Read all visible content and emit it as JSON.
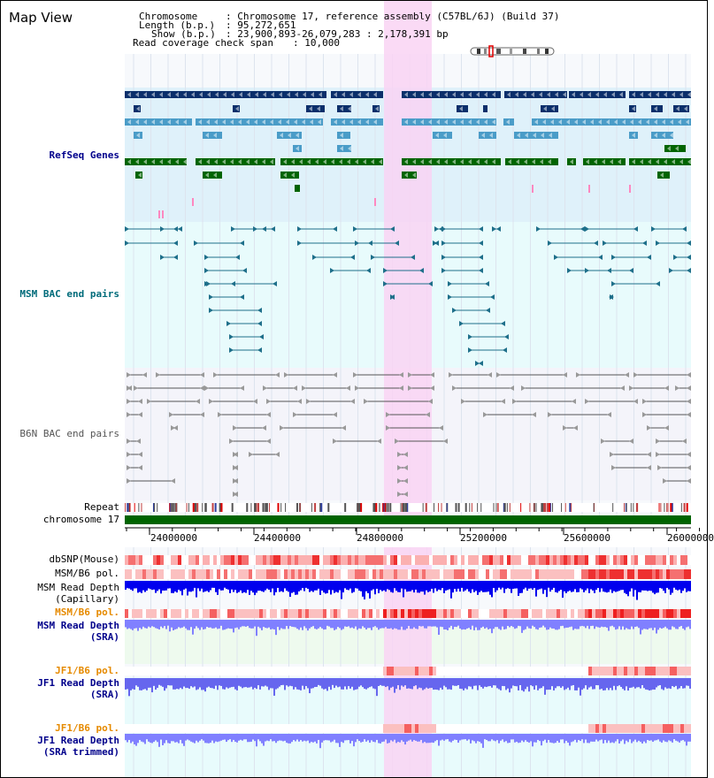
{
  "page": {
    "title": "Map View"
  },
  "info": {
    "chromosome_label": "Chromosome",
    "chromosome_value": ": Chromosome 17, reference assembly (C57BL/6J) (Build 37)",
    "length_label": "Length (b.p.)",
    "length_value": ": 95,272,651",
    "show_label": "Show (b.p.)",
    "show_value": ": 23,900,893-26,079,283 : 2,178,391 bp",
    "coverage_label": "Read coverage check span",
    "coverage_value": ": 10,000"
  },
  "tracks": {
    "refseq": "RefSeq Genes",
    "msm_bac": "MSM BAC end pairs",
    "b6n_bac": "B6N BAC end pairs",
    "repeat": "Repeat",
    "chromosome": "chromosome 17",
    "dbsnp": "dbSNP(Mouse)",
    "msm_b6_pol_1": "MSM/B6 pol.",
    "msm_read_depth_cap_1": "MSM Read Depth",
    "msm_read_depth_cap_2": "(Capillary)",
    "msm_b6_pol_2": "MSM/B6 pol.",
    "msm_read_depth_sra_1": "MSM Read Depth",
    "msm_read_depth_sra_2": "(SRA)",
    "jf1_b6_pol_1": "JF1/B6 pol.",
    "jf1_read_depth_sra_1": "JF1 Read Depth",
    "jf1_read_depth_sra_2": "(SRA)",
    "jf1_b6_pol_2": "JF1/B6 pol.",
    "jf1_read_depth_trim_1": "JF1 Read Depth",
    "jf1_read_depth_trim_2": "(SRA trimmed)"
  },
  "axis": {
    "ticks": [
      "24000000",
      "24400000",
      "24800000",
      "25200000",
      "25600000",
      "26000000"
    ]
  },
  "colors": {
    "highlight": "#f9d4f3",
    "refseq_bg": "#dff1fa",
    "bac_bg": "#e8fbfc",
    "b6n_bg": "#f4f4fa",
    "refseq_dark": "#0b2f6b",
    "refseq_mid": "#4a9cc8",
    "refseq_green": "#006400",
    "msm_bac": "#1e6f8a",
    "b6n_bac": "#555555",
    "chromosome": "#006400",
    "depth_blue": "#0000ee",
    "depth_light": "#8080ff",
    "label_blue": "#00008b",
    "label_teal": "#006b7a",
    "label_orange": "#e68a00"
  }
}
